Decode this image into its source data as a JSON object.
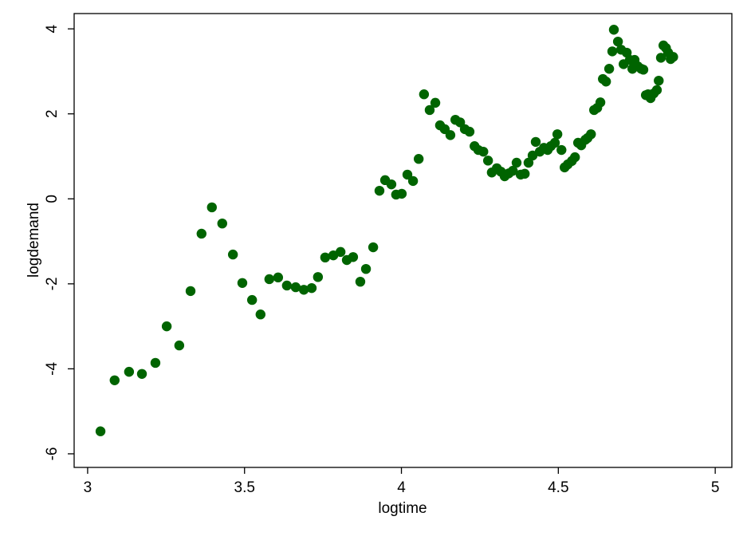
{
  "chart_data": {
    "type": "scatter",
    "x_label": "logtime",
    "y_label": "logdemand",
    "xlim": [
      2.957,
      5.053
    ],
    "ylim": [
      -6.32,
      4.36
    ],
    "xticks": [
      3,
      3.5,
      4,
      4.5,
      5
    ],
    "yticks": [
      -6,
      -4,
      -2,
      0,
      2,
      4
    ],
    "grid": false,
    "series": [
      {
        "color": "#006400",
        "x": [
          3.041,
          3.086,
          3.132,
          3.173,
          3.216,
          3.252,
          3.292,
          3.328,
          3.363,
          3.396,
          3.429,
          3.463,
          3.493,
          3.524,
          3.551,
          3.579,
          3.607,
          3.635,
          3.663,
          3.689,
          3.714,
          3.734,
          3.757,
          3.783,
          3.806,
          3.826,
          3.846,
          3.869,
          3.887,
          3.91,
          3.93,
          3.948,
          3.968,
          3.983,
          4.001,
          4.019,
          4.037,
          4.055,
          4.072,
          4.09,
          4.108,
          4.123,
          4.138,
          4.156,
          4.172,
          4.187,
          4.202,
          4.217,
          4.233,
          4.245,
          4.261,
          4.276,
          4.288,
          4.304,
          4.317,
          4.329,
          4.342,
          4.355,
          4.367,
          4.38,
          4.393,
          4.405,
          4.418,
          4.428,
          4.441,
          4.454,
          4.466,
          4.476,
          4.489,
          4.497,
          4.51,
          4.52,
          4.53,
          4.543,
          4.553,
          4.563,
          4.573,
          4.586,
          4.593,
          4.604,
          4.614,
          4.624,
          4.634,
          4.642,
          4.652,
          4.662,
          4.672,
          4.677,
          4.69,
          4.7,
          4.708,
          4.718,
          4.728,
          4.736,
          4.743,
          4.753,
          4.764,
          4.771,
          4.779,
          4.786,
          4.794,
          4.804,
          4.814,
          4.82,
          4.827,
          4.835,
          4.843,
          4.85,
          4.858,
          4.866
        ],
        "values": [
          -5.47,
          -4.27,
          -4.07,
          -4.12,
          -3.86,
          -3.0,
          -3.45,
          -2.17,
          -0.82,
          -0.2,
          -0.58,
          -1.31,
          -1.98,
          -2.38,
          -2.72,
          -1.89,
          -1.85,
          -2.04,
          -2.08,
          -2.14,
          -2.1,
          -1.84,
          -1.38,
          -1.33,
          -1.25,
          -1.44,
          -1.37,
          -1.95,
          -1.65,
          -1.14,
          0.19,
          0.44,
          0.34,
          0.1,
          0.12,
          0.57,
          0.42,
          0.94,
          2.46,
          2.09,
          2.26,
          1.73,
          1.64,
          1.5,
          1.86,
          1.8,
          1.64,
          1.58,
          1.24,
          1.15,
          1.11,
          0.9,
          0.62,
          0.72,
          0.64,
          0.53,
          0.6,
          0.66,
          0.85,
          0.57,
          0.59,
          0.85,
          1.02,
          1.34,
          1.11,
          1.2,
          1.15,
          1.24,
          1.32,
          1.52,
          1.15,
          0.74,
          0.81,
          0.89,
          0.98,
          1.32,
          1.26,
          1.39,
          1.43,
          1.52,
          2.09,
          2.14,
          2.27,
          2.82,
          2.76,
          3.06,
          3.47,
          3.98,
          3.7,
          3.51,
          3.17,
          3.44,
          3.27,
          3.06,
          3.27,
          3.12,
          3.06,
          3.04,
          2.44,
          2.46,
          2.37,
          2.48,
          2.56,
          2.78,
          3.32,
          3.61,
          3.55,
          3.44,
          3.29,
          3.34
        ]
      }
    ]
  }
}
